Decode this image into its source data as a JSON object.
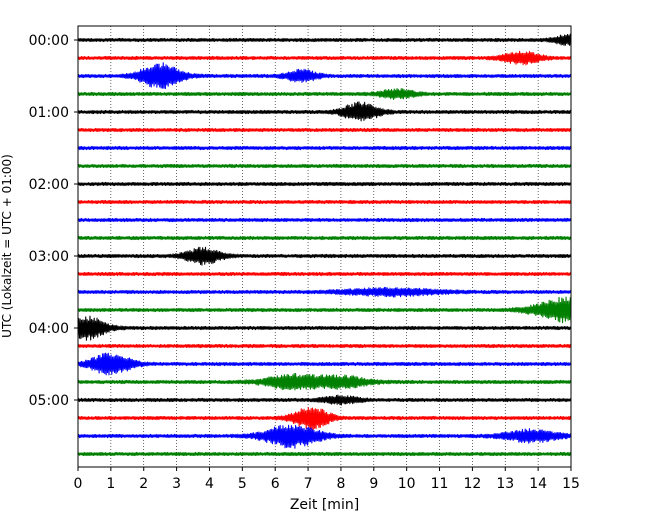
{
  "chart_data": {
    "type": "line",
    "title": "",
    "xlabel": "Zeit  [min]",
    "ylabel": "UTC (Lokalzeit = UTC + 01:00)",
    "xlim": [
      0,
      15
    ],
    "x_ticks": [
      0,
      1,
      2,
      3,
      4,
      5,
      6,
      7,
      8,
      9,
      10,
      11,
      12,
      13,
      14,
      15
    ],
    "x_tick_labels": [
      "0",
      "1",
      "2",
      "3",
      "4",
      "5",
      "6",
      "7",
      "8",
      "9",
      "10",
      "11",
      "12",
      "13",
      "14",
      "15"
    ],
    "y_ticks": [
      {
        "label": "00:00",
        "trace": 0
      },
      {
        "label": "01:00",
        "trace": 4
      },
      {
        "label": "02:00",
        "trace": 8
      },
      {
        "label": "03:00",
        "trace": 12
      },
      {
        "label": "04:00",
        "trace": 16
      },
      {
        "label": "05:00",
        "trace": 20
      }
    ],
    "trace_interval_minutes": 15,
    "grid": "vertical-dotted",
    "colors": [
      "#000000",
      "#ff0000",
      "#0000ff",
      "#008000"
    ],
    "traces": [
      {
        "start": "00:00",
        "color": "#000000",
        "events": [
          {
            "t": 14.9,
            "amp": 1.3,
            "width": 0.3
          }
        ]
      },
      {
        "start": "00:15",
        "color": "#ff0000",
        "events": [
          {
            "t": 13.5,
            "amp": 1.7,
            "width": 0.4
          }
        ]
      },
      {
        "start": "00:30",
        "color": "#0000ff",
        "events": [
          {
            "t": 2.5,
            "amp": 3.5,
            "width": 0.45
          },
          {
            "t": 6.8,
            "amp": 1.6,
            "width": 0.35
          }
        ]
      },
      {
        "start": "00:45",
        "color": "#008000",
        "events": [
          {
            "t": 9.7,
            "amp": 1.2,
            "width": 0.4
          }
        ]
      },
      {
        "start": "01:00",
        "color": "#000000",
        "events": [
          {
            "t": 8.6,
            "amp": 2.6,
            "width": 0.4
          }
        ]
      },
      {
        "start": "01:15",
        "color": "#ff0000",
        "events": []
      },
      {
        "start": "01:30",
        "color": "#0000ff",
        "events": []
      },
      {
        "start": "01:45",
        "color": "#008000",
        "events": []
      },
      {
        "start": "02:00",
        "color": "#000000",
        "events": []
      },
      {
        "start": "02:15",
        "color": "#ff0000",
        "events": []
      },
      {
        "start": "02:30",
        "color": "#0000ff",
        "events": []
      },
      {
        "start": "02:45",
        "color": "#008000",
        "events": []
      },
      {
        "start": "03:00",
        "color": "#000000",
        "events": [
          {
            "t": 3.8,
            "amp": 2.2,
            "width": 0.4
          }
        ]
      },
      {
        "start": "03:15",
        "color": "#ff0000",
        "events": []
      },
      {
        "start": "03:30",
        "color": "#0000ff",
        "events": [
          {
            "t": 9.5,
            "amp": 1.0,
            "width": 1.0
          }
        ]
      },
      {
        "start": "03:45",
        "color": "#008000",
        "events": [
          {
            "t": 14.9,
            "amp": 3.5,
            "width": 0.7
          }
        ]
      },
      {
        "start": "04:00",
        "color": "#000000",
        "events": [
          {
            "t": 0.3,
            "amp": 3.2,
            "width": 0.4
          }
        ]
      },
      {
        "start": "04:15",
        "color": "#ff0000",
        "events": []
      },
      {
        "start": "04:30",
        "color": "#0000ff",
        "events": [
          {
            "t": 1.0,
            "amp": 3.0,
            "width": 0.45
          }
        ]
      },
      {
        "start": "04:45",
        "color": "#008000",
        "events": [
          {
            "t": 6.5,
            "amp": 2.0,
            "width": 0.6
          },
          {
            "t": 8.0,
            "amp": 1.6,
            "width": 0.6
          }
        ]
      },
      {
        "start": "05:00",
        "color": "#000000",
        "events": [
          {
            "t": 8.0,
            "amp": 1.0,
            "width": 0.4
          }
        ]
      },
      {
        "start": "05:15",
        "color": "#ff0000",
        "events": [
          {
            "t": 7.1,
            "amp": 3.0,
            "width": 0.4
          }
        ]
      },
      {
        "start": "05:30",
        "color": "#0000ff",
        "events": [
          {
            "t": 6.5,
            "amp": 3.2,
            "width": 0.6
          },
          {
            "t": 13.8,
            "amp": 1.7,
            "width": 0.6
          }
        ]
      },
      {
        "start": "05:45",
        "color": "#008000",
        "events": []
      }
    ]
  }
}
